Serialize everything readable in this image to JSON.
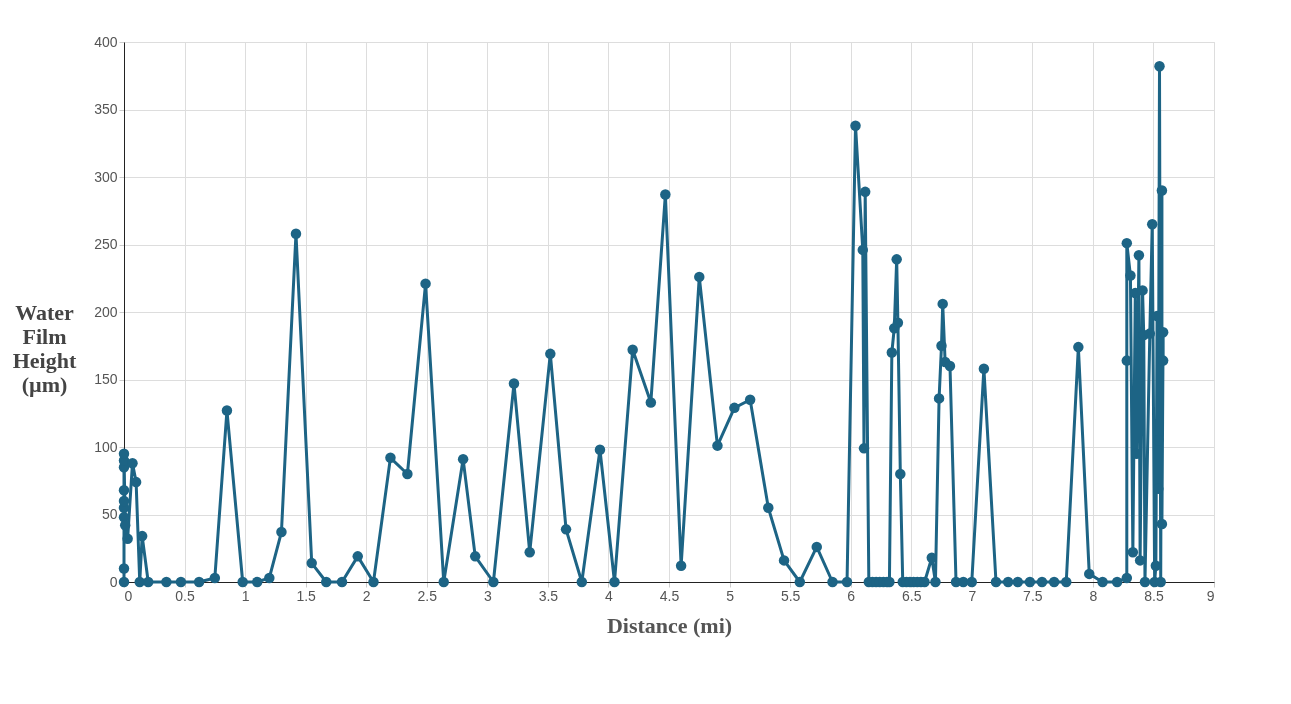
{
  "chart_data": {
    "type": "line",
    "xlabel": "Distance (mi)",
    "ylabel": "Water Film Height (µm)",
    "xlim": [
      0,
      9
    ],
    "xticks": [
      0,
      0.5,
      1,
      1.5,
      2,
      2.5,
      3,
      3.5,
      4,
      4.5,
      5,
      5.5,
      6,
      6.5,
      7,
      7.5,
      8,
      8.5,
      9
    ],
    "ylim": [
      0,
      400
    ],
    "yticks": [
      0,
      50,
      100,
      150,
      200,
      250,
      300,
      350,
      400
    ],
    "grid": true,
    "marker": "circle",
    "line_style": "solid",
    "legend": false,
    "series": [
      {
        "color": "#1d6485",
        "x": [
          0,
          0,
          0,
          0,
          0,
          0,
          0,
          0,
          0,
          0.01,
          0.03,
          0.07,
          0.1,
          0.13,
          0.15,
          0.2,
          0.35,
          0.47,
          0.62,
          0.75,
          0.85,
          0.98,
          1.1,
          1.2,
          1.3,
          1.42,
          1.55,
          1.67,
          1.8,
          1.93,
          2.06,
          2.2,
          2.34,
          2.49,
          2.64,
          2.8,
          2.9,
          3.05,
          3.22,
          3.35,
          3.52,
          3.65,
          3.78,
          3.93,
          4.05,
          4.2,
          4.35,
          4.47,
          4.6,
          4.75,
          4.9,
          5.04,
          5.17,
          5.32,
          5.45,
          5.58,
          5.72,
          5.85,
          5.97,
          6.04,
          6.1,
          6.11,
          6.12,
          6.15,
          6.18,
          6.21,
          6.24,
          6.27,
          6.3,
          6.32,
          6.34,
          6.36,
          6.38,
          6.39,
          6.41,
          6.43,
          6.46,
          6.49,
          6.52,
          6.55,
          6.58,
          6.61,
          6.67,
          6.7,
          6.73,
          6.75,
          6.76,
          6.78,
          6.82,
          6.87,
          6.93,
          7.0,
          7.1,
          7.2,
          7.3,
          7.38,
          7.48,
          7.58,
          7.68,
          7.78,
          7.88,
          7.97,
          8.08,
          8.2,
          8.28,
          8.28,
          8.28,
          8.31,
          8.33,
          8.35,
          8.36,
          8.38,
          8.39,
          8.41,
          8.42,
          8.43,
          8.47,
          8.49,
          8.51,
          8.52,
          8.53,
          8.54,
          8.54,
          8.55,
          8.56,
          8.57,
          8.57,
          8.58,
          8.58
        ],
        "values": [
          0,
          10,
          48,
          55,
          60,
          68,
          85,
          90,
          95,
          42,
          32,
          88,
          74,
          0,
          34,
          0,
          0,
          0,
          0,
          3,
          127,
          0,
          0,
          3,
          37,
          258,
          14,
          0,
          0,
          19,
          0,
          92,
          80,
          221,
          0,
          91,
          19,
          0,
          147,
          22,
          169,
          39,
          0,
          98,
          0,
          172,
          133,
          287,
          12,
          226,
          101,
          129,
          135,
          55,
          16,
          0,
          26,
          0,
          0,
          338,
          246,
          99,
          289,
          0,
          0,
          0,
          0,
          0,
          0,
          0,
          170,
          188,
          239,
          192,
          80,
          0,
          0,
          0,
          0,
          0,
          0,
          0,
          18,
          0,
          136,
          175,
          206,
          163,
          160,
          0,
          0,
          0,
          158,
          0,
          0,
          0,
          0,
          0,
          0,
          0,
          174,
          6,
          0,
          0,
          3,
          164,
          251,
          227,
          22,
          214,
          95,
          242,
          16,
          216,
          183,
          0,
          184,
          265,
          0,
          12,
          197,
          105,
          69,
          382,
          0,
          290,
          43,
          185,
          164
        ]
      }
    ]
  }
}
